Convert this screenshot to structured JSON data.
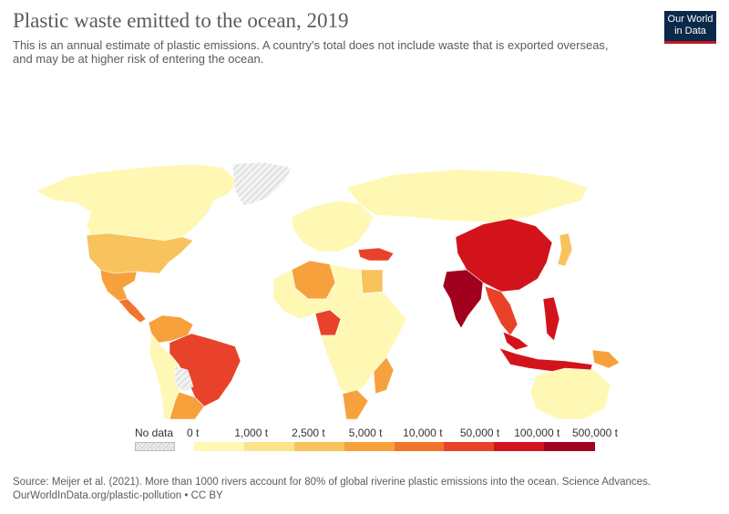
{
  "header": {
    "title": "Plastic waste emitted to the ocean, 2019",
    "subtitle_line1": "This is an annual estimate of plastic emissions. A country's total does not include waste that is exported overseas,",
    "subtitle_line2": "and may be at higher risk of entering the ocean.",
    "logo_line1": "Our World",
    "logo_line2": "in Data"
  },
  "legend": {
    "no_data_label": "No data",
    "breaks": [
      "0 t",
      "1,000 t",
      "2,500 t",
      "5,000 t",
      "10,000 t",
      "50,000 t",
      "100,000 t",
      "500,000 t"
    ],
    "colors": [
      "#fef8b4",
      "#fce48a",
      "#f8c35c",
      "#f6a13c",
      "#f1742c",
      "#e8432a",
      "#d3131c",
      "#a1001e"
    ]
  },
  "map": {
    "regions": [
      {
        "name": "north-america",
        "color": "#fef8b4"
      },
      {
        "name": "usa",
        "color": "#f8c35c"
      },
      {
        "name": "mexico",
        "color": "#f6a13c"
      },
      {
        "name": "central-america",
        "color": "#f1742c"
      },
      {
        "name": "greenland",
        "color": "no-data"
      },
      {
        "name": "venezuela-colombia",
        "color": "#f6a13c"
      },
      {
        "name": "brazil",
        "color": "#e8432a"
      },
      {
        "name": "argentina",
        "color": "#f6a13c"
      },
      {
        "name": "south-america-west",
        "color": "#fef8b4"
      },
      {
        "name": "bolivia",
        "color": "no-data"
      },
      {
        "name": "europe",
        "color": "#fef8b4"
      },
      {
        "name": "turkey",
        "color": "#e8432a"
      },
      {
        "name": "russia",
        "color": "#fef8b4"
      },
      {
        "name": "algeria",
        "color": "#f6a13c"
      },
      {
        "name": "egypt",
        "color": "#f8c35c"
      },
      {
        "name": "nigeria",
        "color": "#e8432a"
      },
      {
        "name": "africa",
        "color": "#fef8b4"
      },
      {
        "name": "south-africa",
        "color": "#f6a13c"
      },
      {
        "name": "mozambique",
        "color": "#f6a13c"
      },
      {
        "name": "china",
        "color": "#d3131c"
      },
      {
        "name": "india",
        "color": "#a1001e"
      },
      {
        "name": "southeast-asia",
        "color": "#e8432a"
      },
      {
        "name": "philippines",
        "color": "#d3131c"
      },
      {
        "name": "indonesia",
        "color": "#d3131c"
      },
      {
        "name": "malaysia",
        "color": "#d3131c"
      },
      {
        "name": "papua-new-guinea",
        "color": "#f6a13c"
      },
      {
        "name": "japan",
        "color": "#f8c35c"
      },
      {
        "name": "australia",
        "color": "#fef8b4"
      }
    ]
  },
  "footer": {
    "source": "Source: Meijer et al. (2021). More than 1000 rivers account for 80% of global riverine plastic emissions into the ocean. Science Advances.",
    "url_license": "OurWorldInData.org/plastic-pollution • CC BY"
  }
}
